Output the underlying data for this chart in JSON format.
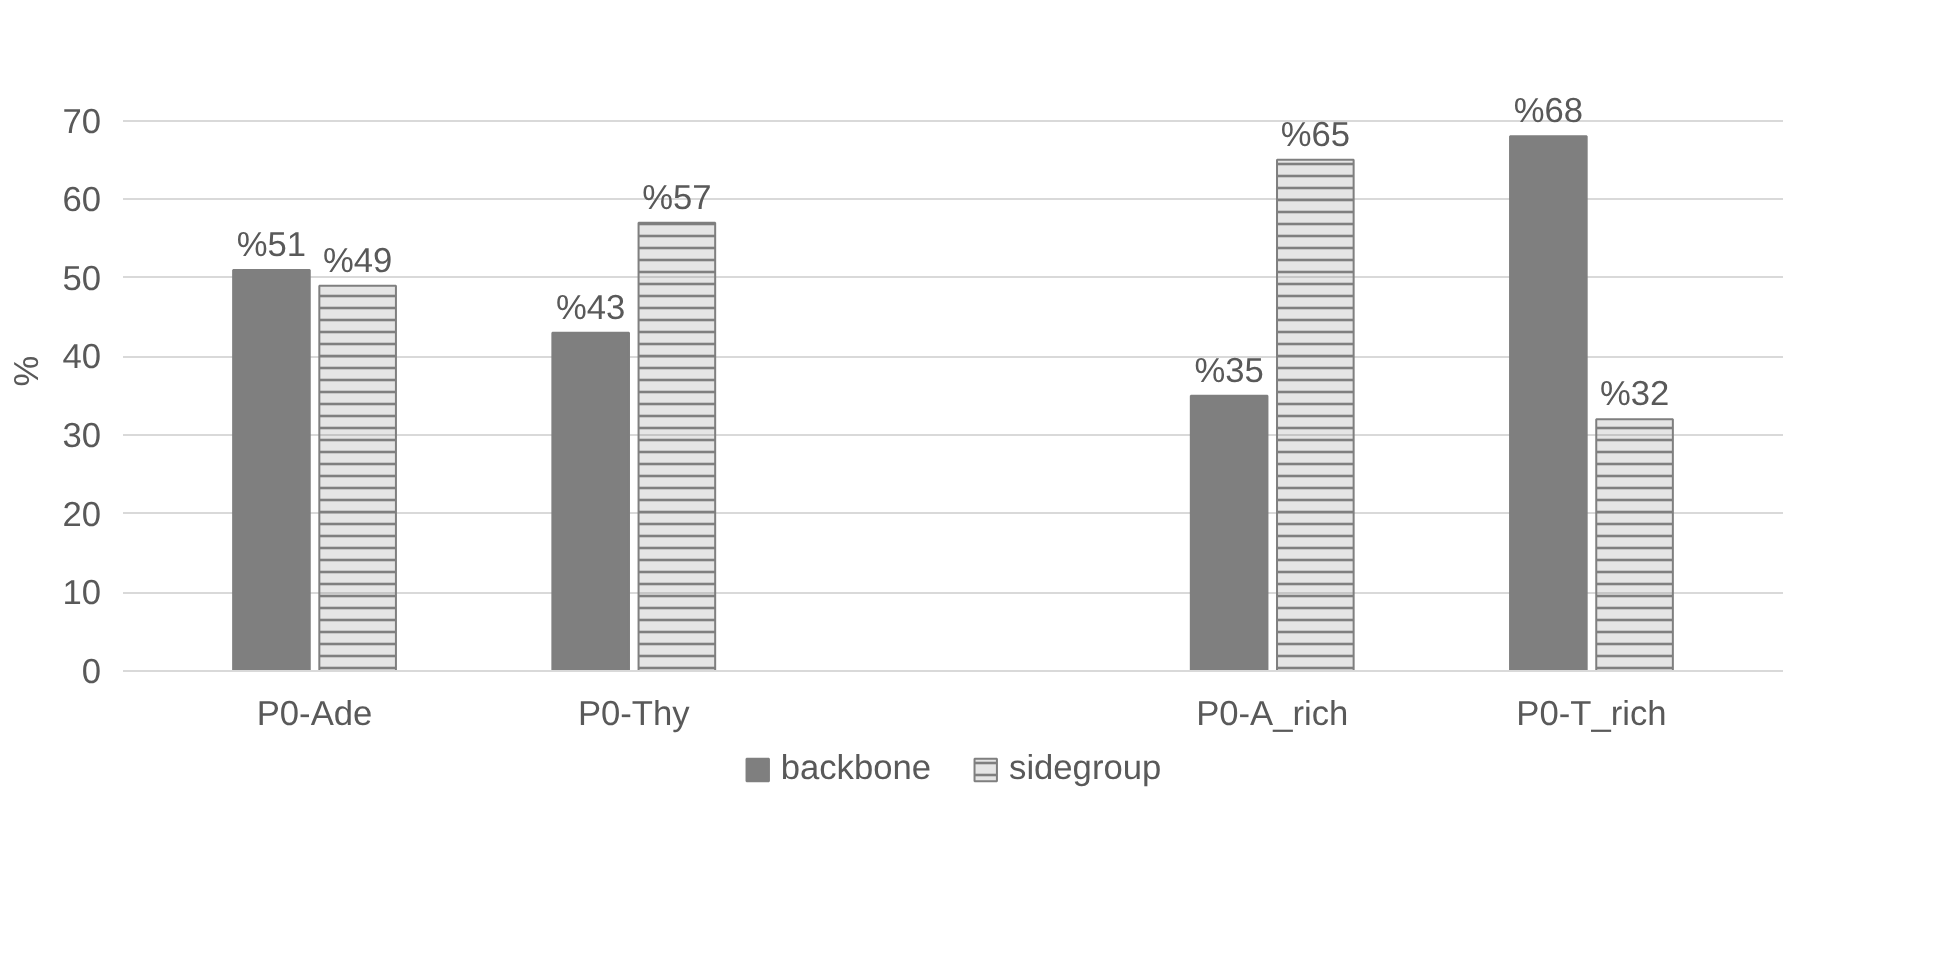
{
  "chart_data": {
    "type": "bar",
    "ylabel": "%",
    "categories": [
      "P0-Ade",
      "P0-Thy",
      null,
      "P0-A_rich",
      "P0-T_rich"
    ],
    "series": [
      {
        "name": "backbone",
        "color": "#7f7f7f",
        "values": [
          51,
          43,
          null,
          35,
          68
        ],
        "value_labels": [
          "%51",
          "%43",
          null,
          "%35",
          "%68"
        ]
      },
      {
        "name": "sidegroup",
        "color": "#7f7f7f",
        "values": [
          49,
          57,
          null,
          65,
          32
        ],
        "value_labels": [
          "%49",
          "%57",
          null,
          "%65",
          "%32"
        ]
      }
    ],
    "ylim": [
      0,
      70
    ],
    "yticks": [
      0,
      10,
      20,
      30,
      40,
      50,
      60,
      70
    ],
    "grid": "y",
    "legend": "bottom"
  }
}
